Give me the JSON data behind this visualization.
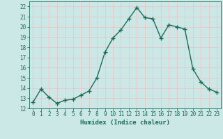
{
  "x": [
    0,
    1,
    2,
    3,
    4,
    5,
    6,
    7,
    8,
    9,
    10,
    11,
    12,
    13,
    14,
    15,
    16,
    17,
    18,
    19,
    20,
    21,
    22,
    23
  ],
  "y": [
    12.6,
    13.9,
    13.1,
    12.5,
    12.8,
    12.9,
    13.3,
    13.7,
    15.0,
    17.5,
    18.9,
    19.7,
    20.8,
    21.9,
    20.9,
    20.8,
    18.9,
    20.2,
    20.0,
    19.8,
    15.9,
    14.6,
    13.9,
    13.6
  ],
  "line_color": "#1a6b5a",
  "marker": "+",
  "marker_size": 4,
  "xlabel": "Humidex (Indice chaleur)",
  "ylim": [
    12,
    22.5
  ],
  "xlim": [
    -0.5,
    23.5
  ],
  "yticks": [
    12,
    13,
    14,
    15,
    16,
    17,
    18,
    19,
    20,
    21,
    22
  ],
  "xticks": [
    0,
    1,
    2,
    3,
    4,
    5,
    6,
    7,
    8,
    9,
    10,
    11,
    12,
    13,
    14,
    15,
    16,
    17,
    18,
    19,
    20,
    21,
    22,
    23
  ],
  "background_color": "#cce8e6",
  "grid_color": "#e8c8c8",
  "line_width": 1.0,
  "tick_fontsize": 5.5,
  "xlabel_fontsize": 6.5
}
